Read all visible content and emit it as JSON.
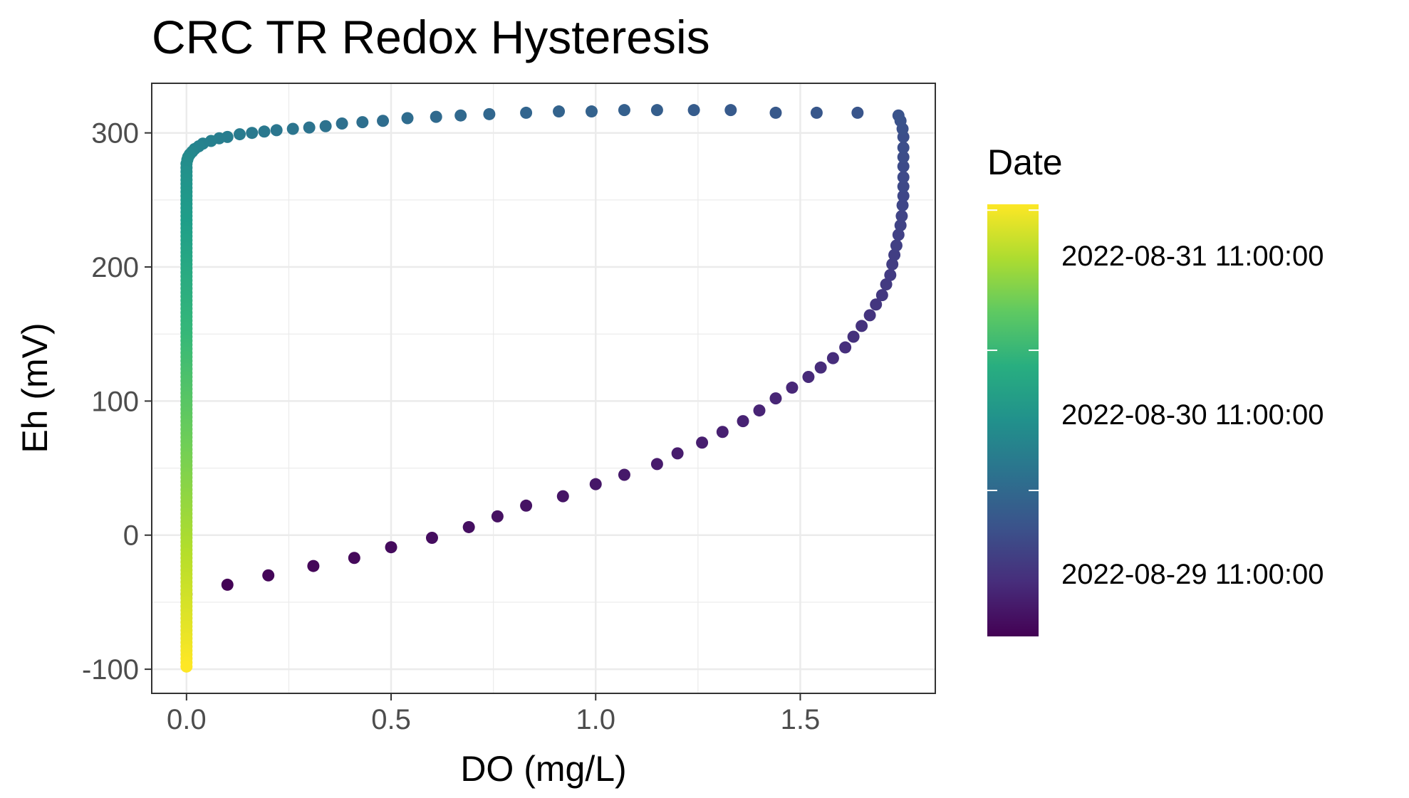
{
  "chart_data": {
    "type": "scatter",
    "title": "CRC TR Redox Hysteresis",
    "xlabel": "DO (mg/L)",
    "ylabel": "Eh (mV)",
    "xlim": [
      -0.085,
      1.83
    ],
    "ylim": [
      -118,
      337
    ],
    "x_ticks": [
      0.0,
      0.5,
      1.0,
      1.5
    ],
    "x_tick_labels": [
      "0.0",
      "0.5",
      "1.0",
      "1.5"
    ],
    "y_ticks": [
      -100,
      0,
      100,
      200,
      300
    ],
    "y_tick_labels": [
      "-100",
      "0",
      "100",
      "200",
      "300"
    ],
    "grid": true,
    "color_scale": "viridis",
    "legend": {
      "title": "Date",
      "placement": "right",
      "labels": [
        "2022-08-31 11:00:00",
        "2022-08-30 11:00:00",
        "2022-08-29 11:00:00"
      ],
      "label_dates": [
        "2022-08-31 11:00:00",
        "2022-08-30 11:00:00",
        "2022-08-29 11:00:00"
      ],
      "date_range": [
        "2022-08-28 10:00:00",
        "2022-08-31 12:00:00"
      ]
    },
    "series": [
      {
        "segments": [
          {
            "points": [
              [
                0.0,
                -44
              ],
              [
                0.1,
                -37
              ],
              [
                0.2,
                -30
              ],
              [
                0.31,
                -23
              ],
              [
                0.41,
                -17
              ],
              [
                0.5,
                -9
              ],
              [
                0.6,
                -2
              ],
              [
                0.69,
                6
              ],
              [
                0.76,
                14
              ],
              [
                0.83,
                22
              ],
              [
                0.92,
                29
              ],
              [
                1.0,
                38
              ],
              [
                1.07,
                45
              ],
              [
                1.15,
                53
              ],
              [
                1.2,
                61
              ],
              [
                1.26,
                69
              ],
              [
                1.31,
                77
              ],
              [
                1.36,
                85
              ],
              [
                1.4,
                93
              ],
              [
                1.44,
                102
              ],
              [
                1.48,
                110
              ],
              [
                1.52,
                118
              ],
              [
                1.55,
                125
              ],
              [
                1.58,
                132
              ],
              [
                1.61,
                140
              ],
              [
                1.63,
                148
              ],
              [
                1.65,
                156
              ],
              [
                1.67,
                164
              ],
              [
                1.685,
                172
              ],
              [
                1.7,
                179
              ]
            ],
            "start": "2022-08-28 10:00:00",
            "end": "2022-08-28 22:00:00"
          },
          {
            "points": [
              [
                1.71,
                187
              ],
              [
                1.72,
                194
              ],
              [
                1.725,
                202
              ],
              [
                1.73,
                209
              ],
              [
                1.735,
                216
              ],
              [
                1.74,
                224
              ],
              [
                1.745,
                231
              ],
              [
                1.748,
                238
              ],
              [
                1.75,
                246
              ],
              [
                1.752,
                253
              ],
              [
                1.752,
                260
              ],
              [
                1.752,
                267
              ],
              [
                1.752,
                275
              ],
              [
                1.752,
                282
              ],
              [
                1.752,
                289
              ],
              [
                1.752,
                297
              ],
              [
                1.75,
                303
              ],
              [
                1.745,
                309
              ],
              [
                1.74,
                313
              ]
            ],
            "start": "2022-08-28 22:30:00",
            "end": "2022-08-29 05:00:00"
          },
          {
            "points": [
              [
                1.64,
                315
              ],
              [
                1.54,
                315
              ],
              [
                1.44,
                315
              ],
              [
                1.33,
                317
              ],
              [
                1.24,
                317
              ],
              [
                1.15,
                317
              ],
              [
                1.07,
                317
              ],
              [
                0.99,
                316
              ],
              [
                0.91,
                316
              ],
              [
                0.83,
                315
              ],
              [
                0.74,
                314
              ],
              [
                0.67,
                313
              ],
              [
                0.61,
                312
              ],
              [
                0.54,
                311
              ],
              [
                0.48,
                309
              ],
              [
                0.43,
                308
              ],
              [
                0.38,
                307
              ],
              [
                0.34,
                305
              ],
              [
                0.3,
                304
              ],
              [
                0.26,
                303
              ],
              [
                0.22,
                302
              ],
              [
                0.19,
                301
              ],
              [
                0.16,
                300
              ],
              [
                0.13,
                299
              ],
              [
                0.1,
                297
              ],
              [
                0.08,
                296
              ],
              [
                0.06,
                294
              ],
              [
                0.04,
                292
              ],
              [
                0.03,
                290
              ],
              [
                0.02,
                288
              ],
              [
                0.014,
                286
              ],
              [
                0.008,
                284
              ],
              [
                0.004,
                282
              ],
              [
                0.002,
                280
              ],
              [
                0.0,
                277
              ],
              [
                0.0,
                274
              ],
              [
                0.0,
                271
              ]
            ],
            "start": "2022-08-29 05:30:00",
            "end": "2022-08-29 23:00:00"
          },
          {
            "x": 0.0,
            "y_from": 268,
            "y_to": -98,
            "step": -3,
            "start": "2022-08-29 23:30:00",
            "end": "2022-08-31 12:00:00"
          }
        ]
      }
    ]
  }
}
